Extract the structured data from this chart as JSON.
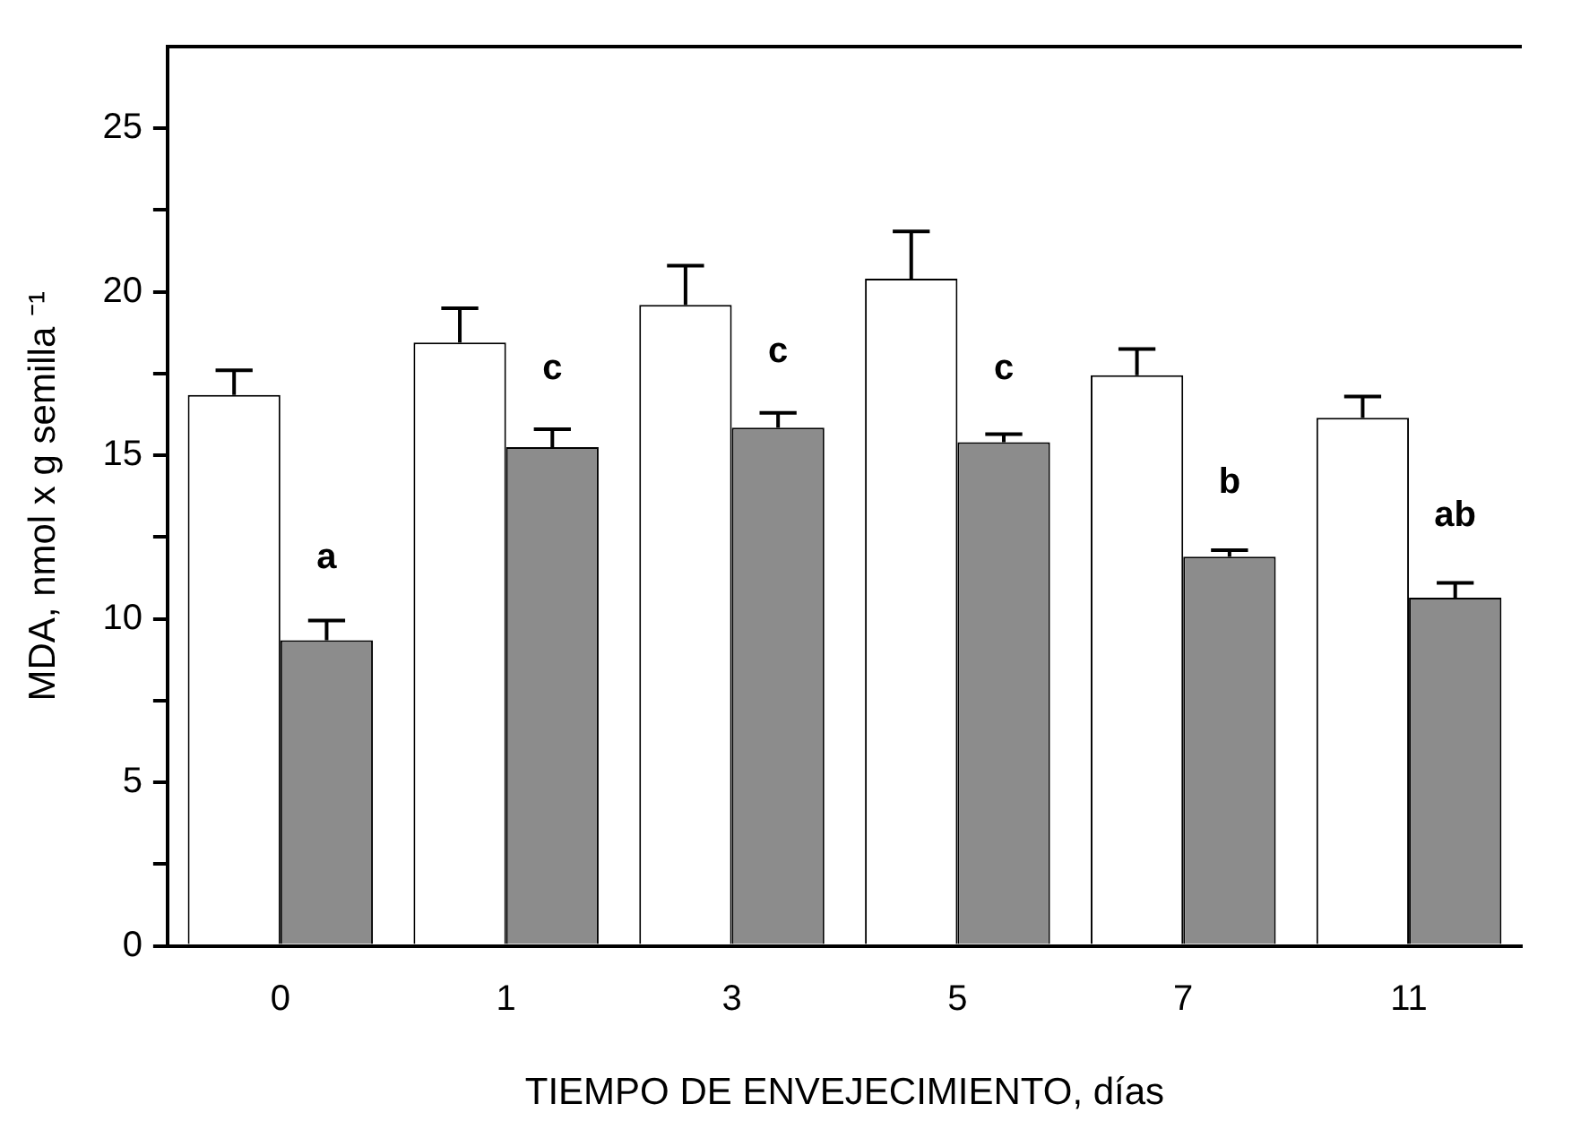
{
  "chart_data": {
    "type": "bar",
    "xlabel": "TIEMPO DE ENVEJECIMIENTO, días",
    "ylabel": "MDA, nmol x g semilla ⁻¹",
    "categories": [
      "0",
      "1",
      "3",
      "5",
      "7",
      "11"
    ],
    "series": [
      {
        "color": "#ffffff",
        "values": [
          16.85,
          18.45,
          19.6,
          20.4,
          17.45,
          16.15
        ],
        "errors": [
          [
            16.85,
            17.6
          ],
          [
            18.45,
            19.5
          ],
          [
            19.6,
            20.8
          ],
          [
            20.4,
            21.85
          ],
          [
            17.45,
            18.25
          ],
          [
            16.15,
            16.8
          ]
        ]
      },
      {
        "color": "#8c8c8c",
        "values": [
          9.35,
          15.25,
          15.85,
          15.4,
          11.9,
          10.65
        ],
        "errors": [
          [
            9.35,
            9.95
          ],
          [
            15.25,
            15.8
          ],
          [
            15.85,
            16.3
          ],
          [
            15.4,
            15.65
          ],
          [
            11.9,
            12.1
          ],
          [
            10.65,
            11.1
          ]
        ]
      }
    ],
    "ylim": [
      0,
      27.5
    ],
    "yticks": [
      0,
      {
        "value": 2.5,
        "label": null
      },
      5,
      {
        "value": 7.5,
        "label": null
      },
      10,
      {
        "value": 12.5,
        "label": null
      },
      15,
      {
        "value": 17.5,
        "label": null
      },
      20,
      {
        "value": 22.5,
        "label": null
      },
      25
    ],
    "annotations": [
      {
        "text": "a",
        "x": "0",
        "y": 11.3
      },
      {
        "text": "c",
        "x": "1",
        "y": 17.1
      },
      {
        "text": "c",
        "x": "3",
        "y": 17.6
      },
      {
        "text": "c",
        "x": "5",
        "y": 17.1
      },
      {
        "text": "b",
        "x": "7",
        "y": 13.6
      },
      {
        "text": "ab",
        "x": "11",
        "y": 12.6
      }
    ]
  }
}
